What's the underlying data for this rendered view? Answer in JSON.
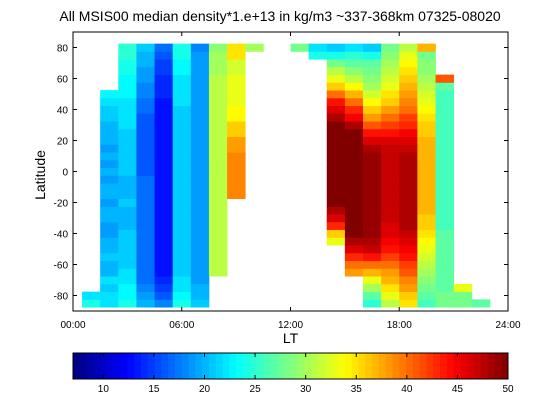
{
  "chart_data": {
    "type": "heatmap",
    "title": "All MSIS00 median density*1.e+13 in kg/m3 ~337-368km 07325-08020",
    "xlabel": "LT",
    "ylabel": "Latitude",
    "xlim": [
      0,
      24
    ],
    "ylim": [
      -90,
      90
    ],
    "xticks": [
      "00:00",
      "06:00",
      "12:00",
      "18:00",
      "24:00"
    ],
    "yticks": [
      -80,
      -60,
      -40,
      -20,
      0,
      20,
      40,
      60,
      80
    ],
    "colorbar": {
      "range": [
        7,
        50
      ],
      "ticks": [
        10,
        15,
        20,
        25,
        30,
        35,
        40,
        45,
        50
      ],
      "colormap": "jet",
      "colors": [
        "#00008f",
        "#0000ff",
        "#00ffff",
        "#ffff00",
        "#ff0000",
        "#800000"
      ]
    },
    "cell_height_deg": 5,
    "columns": [
      {
        "lt": 1.0,
        "lat_min": -85,
        "lat_max": -75,
        "values": [
          24,
          22
        ]
      },
      {
        "lt": 2.0,
        "lat_min": -85,
        "lat_max": 55,
        "values": [
          22,
          22,
          21,
          22,
          20,
          20,
          21,
          20,
          20,
          19,
          19,
          20,
          20,
          19,
          20,
          20,
          19,
          20,
          19,
          20,
          19,
          20,
          20,
          20,
          21,
          21,
          22,
          23
        ]
      },
      {
        "lt": 3.0,
        "lat_min": -85,
        "lat_max": 85,
        "values": [
          24,
          23,
          23,
          22,
          22,
          21,
          21,
          21,
          21,
          21,
          20,
          20,
          20,
          21,
          20,
          20,
          20,
          21,
          21,
          21,
          21,
          21,
          21,
          22,
          22,
          22,
          22,
          23,
          23,
          23,
          24,
          24,
          25,
          25
        ]
      },
      {
        "lt": 4.0,
        "lat_min": -85,
        "lat_max": 85,
        "values": [
          20,
          19,
          18,
          17,
          17,
          17,
          17,
          17,
          17,
          17,
          17,
          17,
          17,
          17,
          17,
          17,
          17,
          16,
          16,
          16,
          16,
          16,
          16,
          16,
          16,
          17,
          17,
          18,
          18,
          19,
          19,
          20,
          20,
          21
        ]
      },
      {
        "lt": 5.0,
        "lat_min": -85,
        "lat_max": 85,
        "values": [
          18,
          16,
          15,
          14,
          13,
          13,
          13,
          13,
          13,
          13,
          13,
          13,
          13,
          13,
          13,
          13,
          13,
          13,
          13,
          13,
          13,
          13,
          13,
          13,
          13,
          13,
          13,
          14,
          14,
          14,
          15,
          15,
          16,
          17
        ]
      },
      {
        "lt": 6.0,
        "lat_min": -85,
        "lat_max": 85,
        "values": [
          24,
          23,
          22,
          22,
          21,
          21,
          21,
          21,
          21,
          21,
          21,
          21,
          21,
          21,
          21,
          21,
          21,
          21,
          21,
          21,
          21,
          21,
          21,
          21,
          21,
          21,
          22,
          22,
          22,
          22,
          23,
          23,
          24,
          24
        ]
      },
      {
        "lt": 7.0,
        "lat_min": -85,
        "lat_max": 85,
        "values": [
          21,
          20,
          20,
          19,
          19,
          19,
          19,
          19,
          19,
          19,
          19,
          19,
          19,
          19,
          19,
          19,
          19,
          19,
          19,
          19,
          19,
          19,
          19,
          19,
          19,
          19,
          19,
          19,
          19,
          19,
          19,
          19,
          19,
          18
        ]
      },
      {
        "lt": 8.0,
        "lat_min": -65,
        "lat_max": 85,
        "values": [
          31,
          31,
          31,
          31,
          31,
          31,
          31,
          31,
          31,
          31,
          31,
          31,
          31,
          31,
          31,
          31,
          31,
          31,
          31,
          31,
          31,
          31,
          31,
          31,
          31,
          31,
          30,
          30,
          30,
          29
        ]
      },
      {
        "lt": 9.0,
        "lat_min": -15,
        "lat_max": 85,
        "values": [
          39,
          39,
          39,
          39,
          39,
          39,
          38,
          38,
          36,
          36,
          34,
          34,
          33,
          33,
          33,
          33,
          32,
          32,
          35,
          35
        ]
      },
      {
        "lt": 10.0,
        "lat_min": 80,
        "lat_max": 85,
        "values": [
          30
        ]
      },
      {
        "lt": 12.5,
        "lat_min": 80,
        "lat_max": 85,
        "values": [
          28
        ]
      },
      {
        "lt": 13.5,
        "lat_min": 75,
        "lat_max": 85,
        "values": [
          24,
          22
        ]
      },
      {
        "lt": 14.5,
        "lat_min": -45,
        "lat_max": 85,
        "values": [
          33,
          36,
          43,
          46,
          48,
          50,
          50,
          50,
          50,
          50,
          50,
          50,
          50,
          50,
          50,
          50,
          48,
          46,
          44,
          40,
          36,
          33,
          31,
          28,
          24,
          21
        ]
      },
      {
        "lt": 15.5,
        "lat_min": -65,
        "lat_max": 85,
        "values": [
          38,
          40,
          43,
          46,
          48,
          50,
          50,
          50,
          50,
          50,
          50,
          50,
          50,
          50,
          50,
          50,
          50,
          50,
          50,
          48,
          45,
          43,
          40,
          37,
          34,
          31,
          29,
          27,
          25,
          22
        ]
      },
      {
        "lt": 16.5,
        "lat_min": -85,
        "lat_max": 85,
        "values": [
          25,
          27,
          30,
          33,
          37,
          40,
          44,
          47,
          48,
          49,
          49,
          49,
          49,
          49,
          49,
          49,
          49,
          49,
          49,
          49,
          48,
          46,
          44,
          41,
          38,
          36,
          34,
          32,
          30,
          29,
          28,
          27,
          24,
          21
        ]
      },
      {
        "lt": 17.5,
        "lat_min": -85,
        "lat_max": 85,
        "values": [
          31,
          33,
          35,
          37,
          38,
          40,
          42,
          44,
          45,
          46,
          46,
          47,
          47,
          47,
          47,
          47,
          47,
          47,
          47,
          47,
          47,
          46,
          44,
          42,
          40,
          38,
          36,
          35,
          33,
          32,
          31,
          30,
          29,
          28
        ]
      },
      {
        "lt": 18.5,
        "lat_min": -85,
        "lat_max": 85,
        "values": [
          35,
          36,
          38,
          39,
          41,
          42,
          44,
          45,
          46,
          47,
          48,
          48,
          48,
          48,
          48,
          48,
          48,
          48,
          48,
          48,
          47,
          46,
          45,
          43,
          42,
          40,
          39,
          38,
          37,
          36,
          35,
          34,
          33,
          31
        ]
      },
      {
        "lt": 19.5,
        "lat_min": -85,
        "lat_max": 85,
        "values": [
          26,
          27,
          28,
          29,
          30,
          31,
          32,
          33,
          34,
          35,
          36,
          36,
          37,
          37,
          37,
          37,
          37,
          37,
          37,
          37,
          37,
          37,
          36,
          36,
          35,
          34,
          33,
          32,
          31,
          30,
          29,
          29,
          28,
          37
        ]
      },
      {
        "lt": 20.5,
        "lat_min": -85,
        "lat_max": 65,
        "values": [
          28,
          28,
          27,
          27,
          27,
          27,
          27,
          27,
          27,
          27,
          26,
          26,
          26,
          26,
          26,
          26,
          26,
          26,
          26,
          26,
          26,
          26,
          26,
          26,
          26,
          26,
          26,
          26,
          27,
          41
        ]
      },
      {
        "lt": 21.5,
        "lat_min": -85,
        "lat_max": -70,
        "values": [
          28,
          28,
          33
        ]
      },
      {
        "lt": 22.5,
        "lat_min": -85,
        "lat_max": -85,
        "values": [
          27
        ]
      }
    ]
  }
}
